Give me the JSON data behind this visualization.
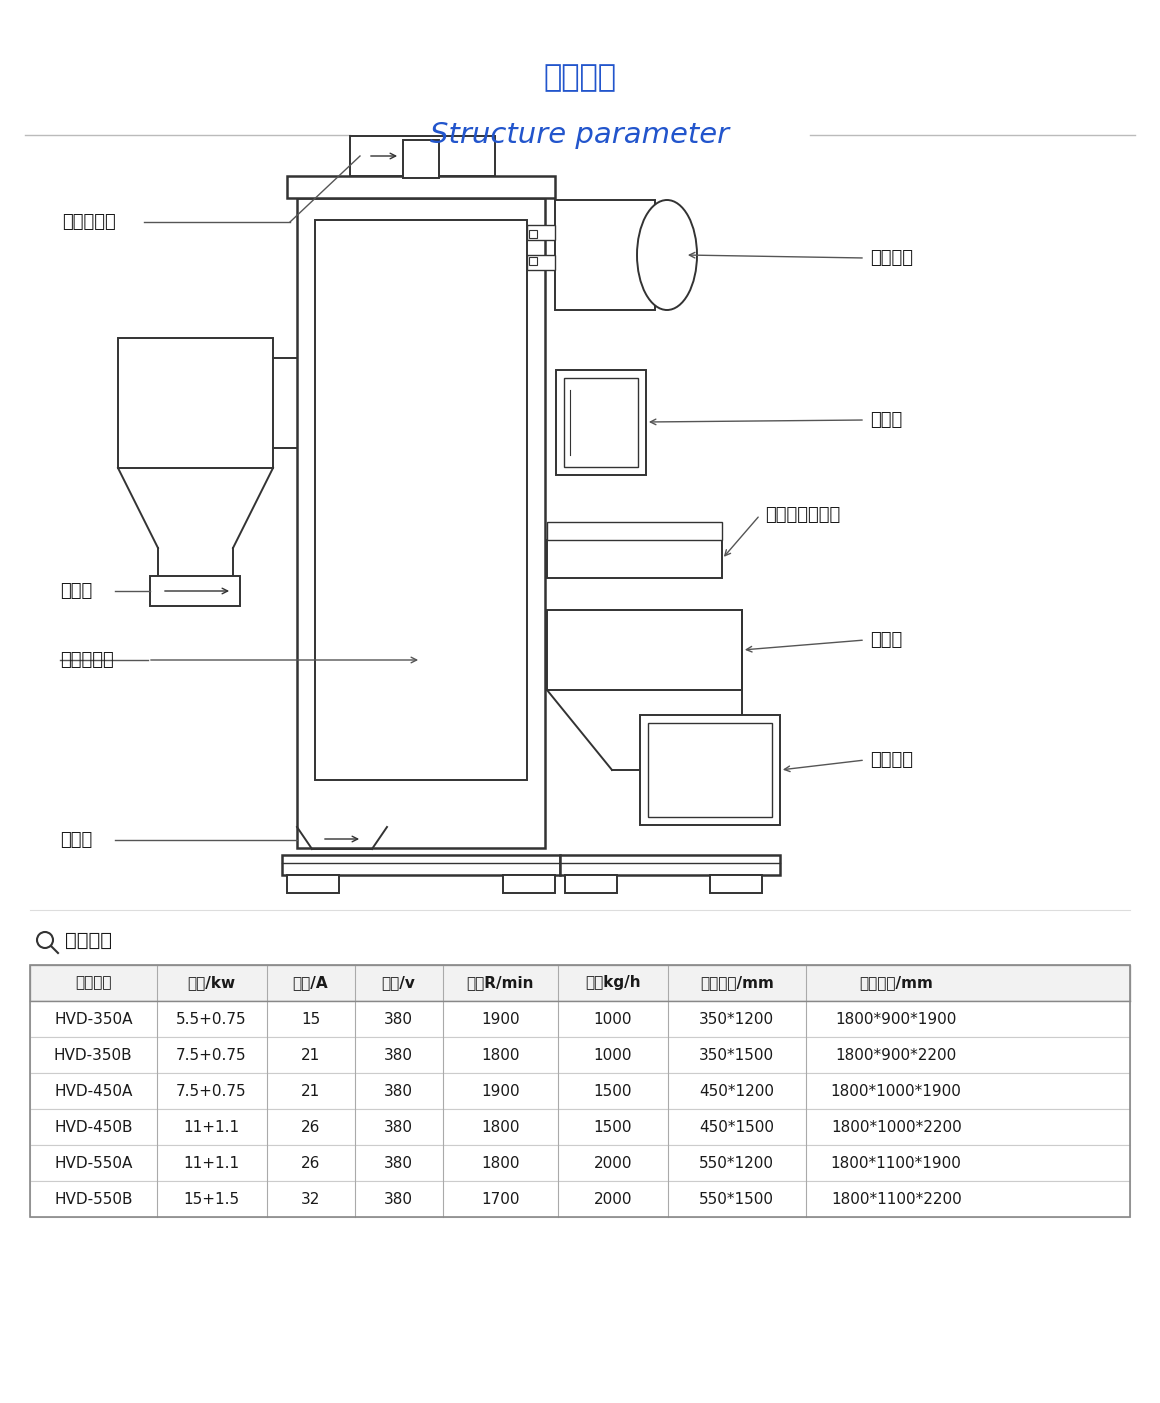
{
  "title_cn": "结构参数",
  "title_en": "Structure parameter",
  "title_color": "#2255cc",
  "bg_color": "#ffffff",
  "line_color": "#aaaaaa",
  "diagram_color": "#333333",
  "table_section_title": "技术参数",
  "table_headers": [
    "产品型号",
    "功率/kw",
    "电流/A",
    "电压/v",
    "转速R/min",
    "产量kg/h",
    "内部尺寸/mm",
    "外形尺寸/mm"
  ],
  "table_rows": [
    [
      "HVD-350A",
      "5.5+0.75",
      "15",
      "380",
      "1900",
      "1000",
      "350*1200",
      "1800*900*1900"
    ],
    [
      "HVD-350B",
      "7.5+0.75",
      "21",
      "380",
      "1800",
      "1000",
      "350*1500",
      "1800*900*2200"
    ],
    [
      "HVD-450A",
      "7.5+0.75",
      "21",
      "380",
      "1900",
      "1500",
      "450*1200",
      "1800*1000*1900"
    ],
    [
      "HVD-450B",
      "11+1.1",
      "26",
      "380",
      "1800",
      "1500",
      "450*1500",
      "1800*1000*2200"
    ],
    [
      "HVD-550A",
      "11+1.1",
      "26",
      "380",
      "1800",
      "2000",
      "550*1200",
      "1800*1100*1900"
    ],
    [
      "HVD-550B",
      "15+1.5",
      "32",
      "380",
      "1700",
      "2000",
      "550*1500",
      "1800*1100*2200"
    ]
  ],
  "col_props": [
    0.115,
    0.1,
    0.08,
    0.08,
    0.105,
    0.1,
    0.125,
    0.165
  ],
  "label_fontsize": 13,
  "table_fontsize": 11
}
